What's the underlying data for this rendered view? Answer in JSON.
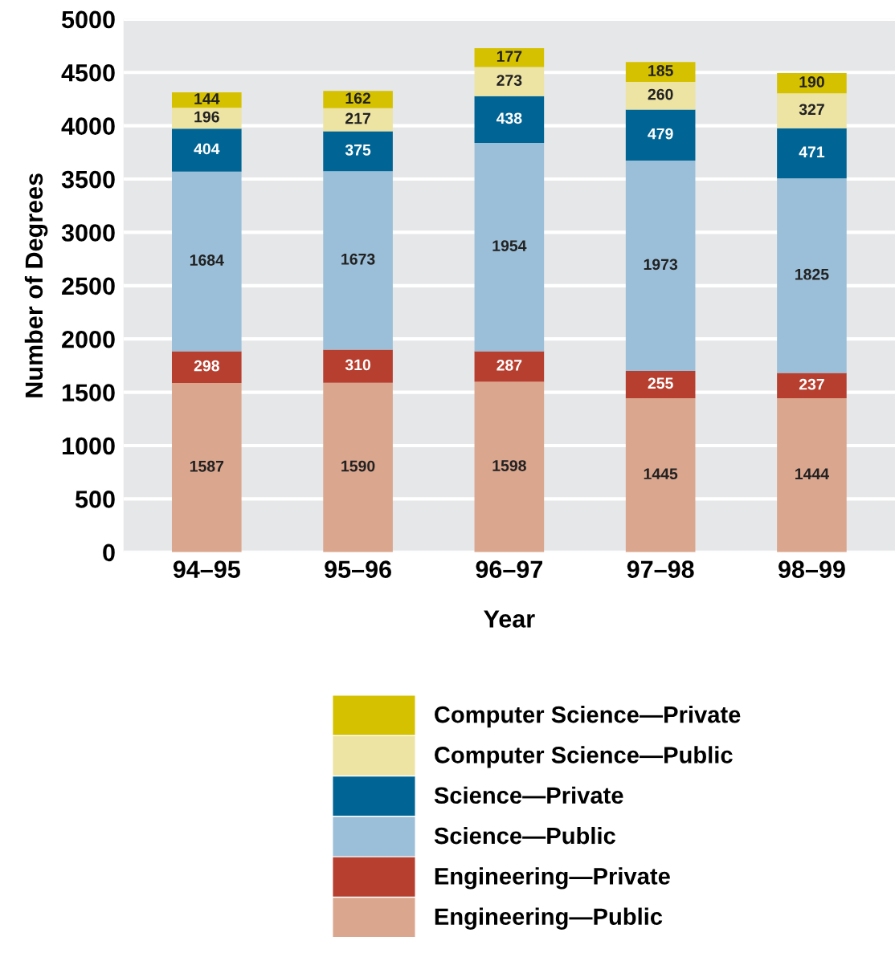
{
  "chart_data": {
    "type": "bar",
    "stacked": true,
    "xlabel": "Year",
    "ylabel": "Number of Degrees",
    "categories": [
      "94–95",
      "95–96",
      "96–97",
      "97–98",
      "98–99"
    ],
    "series": [
      {
        "name": "Engineering—Public",
        "color": "#dba68e",
        "values": [
          1587,
          1590,
          1598,
          1445,
          1444
        ]
      },
      {
        "name": "Engineering—Private",
        "color": "#b73f2f",
        "values": [
          298,
          310,
          287,
          255,
          237
        ]
      },
      {
        "name": "Science—Public",
        "color": "#9bbfd8",
        "values": [
          1684,
          1673,
          1954,
          1973,
          1825
        ]
      },
      {
        "name": "Science—Private",
        "color": "#006494",
        "values": [
          404,
          375,
          438,
          479,
          471
        ]
      },
      {
        "name": "Computer Science—Public",
        "color": "#ede3a3",
        "values": [
          196,
          217,
          273,
          260,
          327
        ]
      },
      {
        "name": "Computer Science—Private",
        "color": "#d6c100",
        "values": [
          144,
          162,
          177,
          185,
          190
        ]
      }
    ],
    "ylim": [
      0,
      5000
    ],
    "yticks": [
      0,
      500,
      1000,
      1500,
      2000,
      2500,
      3000,
      3500,
      4000,
      4500,
      5000
    ],
    "grid": "y",
    "legend": "bottom",
    "data_labels": true
  }
}
